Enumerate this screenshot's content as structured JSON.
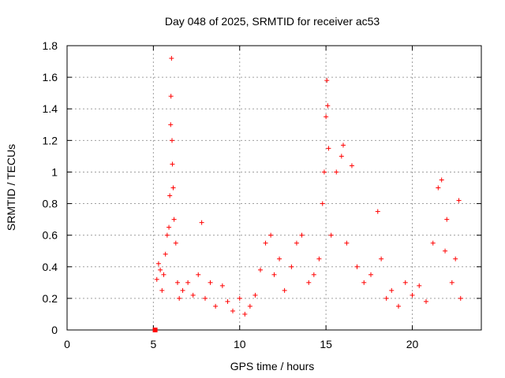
{
  "chart_data": {
    "type": "scatter",
    "title": "Day 048 of 2025, SRMTID for receiver ac53",
    "xlabel": "GPS time / hours",
    "ylabel": "SRMTID / TECUs",
    "xlim": [
      0,
      24
    ],
    "ylim": [
      0,
      1.8
    ],
    "x_ticks": [
      0,
      5,
      10,
      15,
      20
    ],
    "x_tick_labels": [
      "0",
      "5",
      "10",
      "15",
      "20"
    ],
    "y_ticks": [
      0,
      0.2,
      0.4,
      0.6,
      0.8,
      1.0,
      1.2,
      1.4,
      1.6,
      1.8
    ],
    "y_tick_labels": [
      "0",
      "0.2",
      "0.4",
      "0.6",
      "0.8",
      "1",
      "1.2",
      "1.4",
      "1.6",
      "1.8"
    ],
    "grid": true,
    "marker": "+",
    "color": "#ff0000",
    "series": [
      {
        "name": "SRMTID",
        "outlier": {
          "x": 5.1,
          "y": 0.0
        },
        "points": [
          [
            5.2,
            0.32
          ],
          [
            5.3,
            0.42
          ],
          [
            5.4,
            0.38
          ],
          [
            5.5,
            0.25
          ],
          [
            5.6,
            0.35
          ],
          [
            5.7,
            0.48
          ],
          [
            5.8,
            0.6
          ],
          [
            5.9,
            0.65
          ],
          [
            5.95,
            0.85
          ],
          [
            6.0,
            1.3
          ],
          [
            6.02,
            1.48
          ],
          [
            6.05,
            1.72
          ],
          [
            6.08,
            1.2
          ],
          [
            6.1,
            1.05
          ],
          [
            6.15,
            0.9
          ],
          [
            6.2,
            0.7
          ],
          [
            6.3,
            0.55
          ],
          [
            6.4,
            0.3
          ],
          [
            6.5,
            0.2
          ],
          [
            6.7,
            0.25
          ],
          [
            7.0,
            0.3
          ],
          [
            7.3,
            0.22
          ],
          [
            7.6,
            0.35
          ],
          [
            7.8,
            0.68
          ],
          [
            8.0,
            0.2
          ],
          [
            8.3,
            0.3
          ],
          [
            8.6,
            0.15
          ],
          [
            9.0,
            0.28
          ],
          [
            9.3,
            0.18
          ],
          [
            9.6,
            0.12
          ],
          [
            10.0,
            0.2
          ],
          [
            10.3,
            0.1
          ],
          [
            10.6,
            0.15
          ],
          [
            10.9,
            0.22
          ],
          [
            11.2,
            0.38
          ],
          [
            11.5,
            0.55
          ],
          [
            11.8,
            0.6
          ],
          [
            12.0,
            0.35
          ],
          [
            12.3,
            0.45
          ],
          [
            12.6,
            0.25
          ],
          [
            13.0,
            0.4
          ],
          [
            13.3,
            0.55
          ],
          [
            13.6,
            0.6
          ],
          [
            14.0,
            0.3
          ],
          [
            14.3,
            0.35
          ],
          [
            14.6,
            0.45
          ],
          [
            14.8,
            0.8
          ],
          [
            14.9,
            1.0
          ],
          [
            15.0,
            1.35
          ],
          [
            15.05,
            1.58
          ],
          [
            15.1,
            1.42
          ],
          [
            15.15,
            1.15
          ],
          [
            15.3,
            0.6
          ],
          [
            15.6,
            1.0
          ],
          [
            15.9,
            1.1
          ],
          [
            16.0,
            1.17
          ],
          [
            16.2,
            0.55
          ],
          [
            16.5,
            1.04
          ],
          [
            16.8,
            0.4
          ],
          [
            17.2,
            0.3
          ],
          [
            17.6,
            0.35
          ],
          [
            18.0,
            0.75
          ],
          [
            18.2,
            0.45
          ],
          [
            18.5,
            0.2
          ],
          [
            18.8,
            0.25
          ],
          [
            19.2,
            0.15
          ],
          [
            19.6,
            0.3
          ],
          [
            20.0,
            0.22
          ],
          [
            20.4,
            0.28
          ],
          [
            20.8,
            0.18
          ],
          [
            21.2,
            0.55
          ],
          [
            21.5,
            0.9
          ],
          [
            21.7,
            0.95
          ],
          [
            21.9,
            0.5
          ],
          [
            22.0,
            0.7
          ],
          [
            22.3,
            0.3
          ],
          [
            22.5,
            0.45
          ],
          [
            22.7,
            0.82
          ],
          [
            22.8,
            0.2
          ]
        ]
      }
    ]
  }
}
